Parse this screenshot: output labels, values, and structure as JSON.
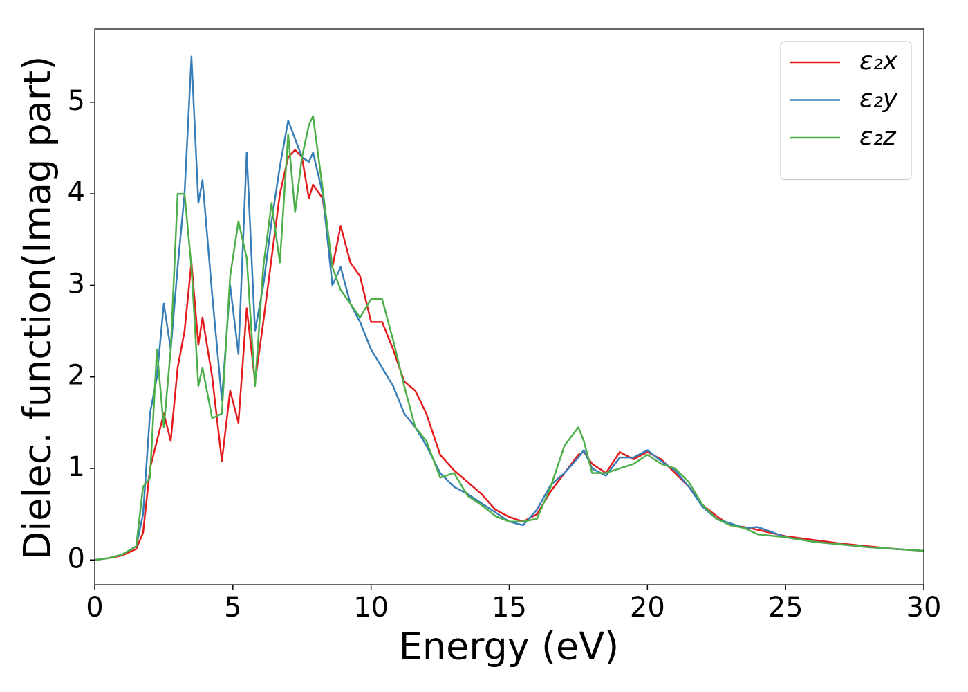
{
  "chart_data": {
    "type": "line",
    "xlabel": "Energy (eV)",
    "ylabel": "Dielec. function(Imag part)",
    "xlim": [
      0,
      30
    ],
    "ylim": [
      -0.27,
      5.8
    ],
    "xticks": [
      0,
      5,
      10,
      15,
      20,
      25,
      30
    ],
    "yticks": [
      0,
      1,
      2,
      3,
      4,
      5
    ],
    "grid": false,
    "legend": "upper right",
    "x": [
      0,
      0.5,
      1,
      1.5,
      1.75,
      2,
      2.25,
      2.5,
      2.75,
      3,
      3.25,
      3.5,
      3.75,
      3.9,
      4.25,
      4.6,
      4.9,
      5.2,
      5.5,
      5.8,
      6.1,
      6.4,
      6.7,
      7,
      7.25,
      7.5,
      7.75,
      7.9,
      8.25,
      8.6,
      8.9,
      9.25,
      9.6,
      10,
      10.4,
      10.8,
      11.2,
      11.6,
      12,
      12.5,
      13,
      13.5,
      14,
      14.5,
      15,
      15.5,
      16,
      16.5,
      17,
      17.5,
      17.7,
      18,
      18.5,
      19,
      19.5,
      20,
      20.5,
      21,
      21.5,
      22,
      22.5,
      23,
      23.5,
      24,
      25,
      26,
      27,
      28,
      29,
      30
    ],
    "series": [
      {
        "name": "ε₂x",
        "color": "#e41a1c",
        "values": [
          0,
          0.02,
          0.05,
          0.12,
          0.3,
          1.0,
          1.3,
          1.6,
          1.3,
          2.1,
          2.5,
          3.25,
          2.35,
          2.65,
          2.0,
          1.08,
          1.85,
          1.5,
          2.75,
          1.95,
          2.6,
          3.3,
          4.0,
          4.4,
          4.48,
          4.4,
          3.95,
          4.1,
          3.95,
          3.2,
          3.65,
          3.25,
          3.1,
          2.6,
          2.6,
          2.3,
          1.95,
          1.85,
          1.6,
          1.15,
          0.98,
          0.85,
          0.72,
          0.55,
          0.47,
          0.42,
          0.5,
          0.75,
          0.95,
          1.15,
          1.18,
          1.05,
          0.95,
          1.18,
          1.1,
          1.18,
          1.1,
          0.95,
          0.8,
          0.6,
          0.48,
          0.38,
          0.36,
          0.33,
          0.26,
          0.22,
          0.18,
          0.15,
          0.12,
          0.1
        ]
      },
      {
        "name": "ε₂y",
        "color": "#377eb8",
        "values": [
          0,
          0.02,
          0.06,
          0.15,
          0.5,
          1.6,
          2.0,
          2.8,
          2.3,
          3.2,
          4.0,
          5.5,
          3.9,
          4.15,
          2.9,
          1.75,
          3.0,
          2.25,
          4.45,
          2.5,
          3.0,
          3.7,
          4.3,
          4.8,
          4.6,
          4.4,
          4.35,
          4.45,
          4.0,
          3.0,
          3.2,
          2.8,
          2.6,
          2.3,
          2.1,
          1.9,
          1.6,
          1.45,
          1.25,
          0.95,
          0.8,
          0.72,
          0.62,
          0.52,
          0.42,
          0.38,
          0.55,
          0.82,
          0.95,
          1.12,
          1.2,
          1.0,
          0.92,
          1.12,
          1.12,
          1.2,
          1.08,
          0.98,
          0.8,
          0.58,
          0.45,
          0.4,
          0.35,
          0.36,
          0.25,
          0.2,
          0.17,
          0.14,
          0.12,
          0.1
        ]
      },
      {
        "name": "ε₂z",
        "color": "#4daf4a",
        "values": [
          0,
          0.02,
          0.06,
          0.15,
          0.8,
          0.9,
          2.3,
          1.45,
          2.3,
          4.0,
          4.0,
          3.2,
          1.9,
          2.1,
          1.55,
          1.6,
          3.1,
          3.7,
          3.3,
          1.9,
          3.2,
          3.9,
          3.25,
          4.65,
          3.8,
          4.4,
          4.75,
          4.85,
          4.05,
          3.2,
          2.95,
          2.8,
          2.65,
          2.85,
          2.85,
          2.4,
          1.9,
          1.45,
          1.3,
          0.9,
          0.95,
          0.7,
          0.6,
          0.48,
          0.42,
          0.42,
          0.45,
          0.8,
          1.25,
          1.45,
          1.3,
          0.95,
          0.95,
          1.0,
          1.05,
          1.15,
          1.05,
          1.0,
          0.85,
          0.6,
          0.45,
          0.38,
          0.35,
          0.28,
          0.25,
          0.2,
          0.17,
          0.14,
          0.12,
          0.1
        ]
      }
    ]
  }
}
